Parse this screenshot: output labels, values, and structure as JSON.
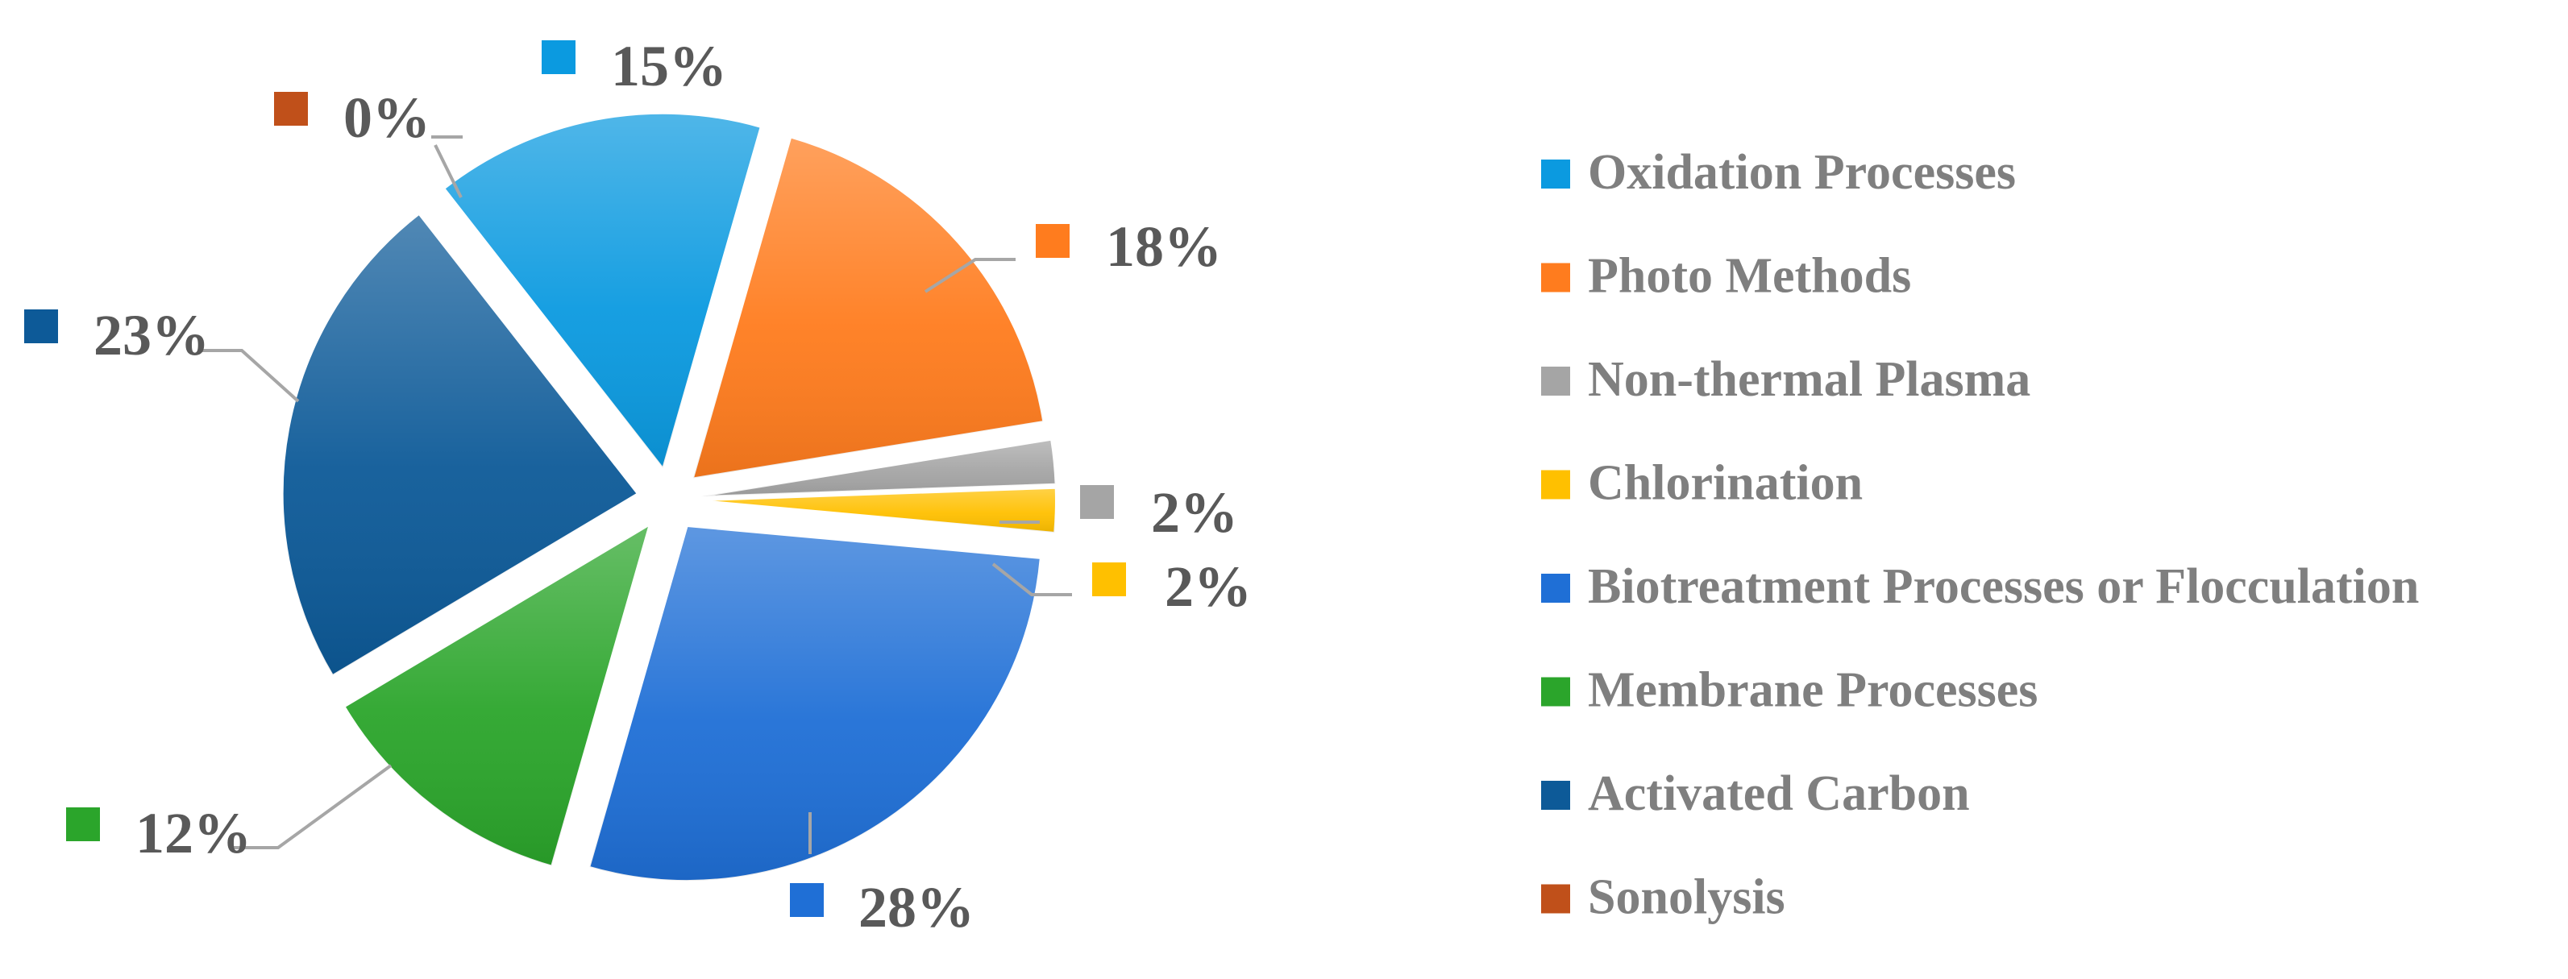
{
  "chart_data": {
    "type": "pie",
    "exploded": true,
    "legend_position": "right",
    "slices": [
      {
        "name": "Oxidation Processes",
        "value": 15,
        "label": "15%",
        "color": "#0b9ae0"
      },
      {
        "name": "Photo Methods",
        "value": 18,
        "label": "18%",
        "color": "#ff7c1e"
      },
      {
        "name": "Non-thermal Plasma",
        "value": 2,
        "label": "2%",
        "color": "#a5a5a5"
      },
      {
        "name": "Chlorination",
        "value": 2,
        "label": "2%",
        "color": "#ffc000"
      },
      {
        "name": "Biotreatment Processes or Flocculation",
        "value": 28,
        "label": "28%",
        "color": "#1f6fd6"
      },
      {
        "name": "Membrane Processes",
        "value": 12,
        "label": "12%",
        "color": "#2ba52b"
      },
      {
        "name": "Activated Carbon",
        "value": 23,
        "label": "23%",
        "color": "#0d5a98"
      },
      {
        "name": "Sonolysis",
        "value": 0,
        "label": "0%",
        "color": "#c0501a"
      }
    ]
  }
}
